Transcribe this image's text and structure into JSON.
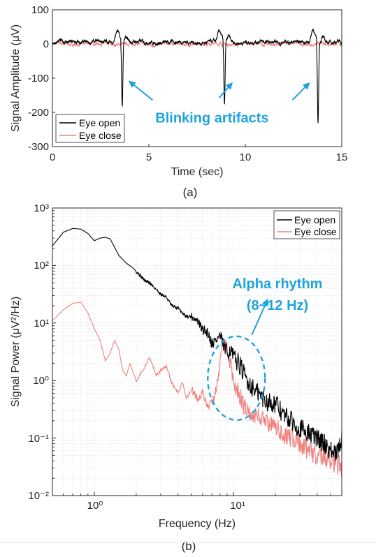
{
  "chart_data": [
    {
      "type": "line",
      "caption": "(a)",
      "xlabel": "Time (sec)",
      "ylabel": "Signal Amplitude (μV)",
      "xlim": [
        0,
        15
      ],
      "ylim": [
        -300,
        100
      ],
      "xticks": [
        0,
        5,
        10,
        15
      ],
      "yticks": [
        100,
        0,
        -100,
        -200,
        -300
      ],
      "legend_position": "bottom-left",
      "series": [
        {
          "name": "Eye open",
          "color": "#000000",
          "baseline": 5,
          "noise": 6,
          "spikes": [
            {
              "t": 3.55,
              "pre": 35,
              "min": -185
            },
            {
              "t": 8.85,
              "pre": 30,
              "min": -185
            },
            {
              "t": 13.7,
              "pre": 40,
              "min": -235
            }
          ]
        },
        {
          "name": "Eye close",
          "color": "#f08080",
          "baseline": 0,
          "noise": 5,
          "spikes": []
        }
      ],
      "annotation": {
        "text": "Blinking artifacts",
        "color": "#1fa3dc",
        "arrow_targets": [
          [
            4.0,
            -110
          ],
          [
            9.3,
            -115
          ],
          [
            13.3,
            -115
          ]
        ],
        "text_anchor": [
          9.0,
          -215
        ]
      }
    },
    {
      "type": "line",
      "caption": "(b)",
      "xlabel": "Frequency (Hz)",
      "ylabel": "Signal Power (μV²/Hz)",
      "xscale": "log",
      "yscale": "log",
      "xlim": [
        0.5,
        60
      ],
      "ylim": [
        0.01,
        1000
      ],
      "xtick_labels": [
        "10⁰",
        "10¹"
      ],
      "ytick_labels": [
        "10³",
        "10²",
        "10¹",
        "10⁰",
        "10⁻¹",
        "10⁻²"
      ],
      "grid": true,
      "legend_position": "top-right",
      "series": [
        {
          "name": "Eye open",
          "color": "#000000",
          "x": [
            0.5,
            0.6,
            0.7,
            0.8,
            0.9,
            1.0,
            1.1,
            1.2,
            1.3,
            1.5,
            1.7,
            1.9,
            2.1,
            2.3,
            2.5,
            2.8,
            3.0,
            3.3,
            3.6,
            4.0,
            4.3,
            4.6,
            5.0,
            5.5,
            6.0,
            6.5,
            7.0,
            7.5,
            8.0,
            8.5,
            9.0,
            9.5,
            10.0,
            11.0,
            12.0,
            13.0,
            14.0,
            15.0,
            17.0,
            20.0,
            23.0,
            26.0,
            30.0,
            35.0,
            40.0,
            45.0,
            50.0,
            55.0,
            60.0
          ],
          "y": [
            220,
            380,
            440,
            430,
            360,
            270,
            300,
            310,
            290,
            150,
            110,
            90,
            70,
            55,
            50,
            38,
            32,
            28,
            20,
            18,
            15,
            13,
            13,
            11,
            7.5,
            7,
            4.5,
            5,
            6,
            4,
            3,
            3.5,
            2.5,
            2,
            1.2,
            0.9,
            0.7,
            0.6,
            0.45,
            0.4,
            0.25,
            0.2,
            0.15,
            0.12,
            0.1,
            0.08,
            0.06,
            0.05,
            0.1
          ]
        },
        {
          "name": "Eye close",
          "color": "#f08080",
          "x": [
            0.5,
            0.6,
            0.7,
            0.8,
            0.9,
            1.0,
            1.1,
            1.2,
            1.3,
            1.4,
            1.5,
            1.6,
            1.7,
            1.8,
            2.0,
            2.2,
            2.5,
            2.8,
            3.0,
            3.3,
            3.6,
            4.0,
            4.3,
            4.6,
            5.0,
            5.5,
            6.0,
            6.5,
            7.0,
            7.5,
            8.0,
            8.5,
            9.0,
            9.5,
            10.0,
            10.5,
            11.0,
            12.0,
            13.0,
            15.0,
            17.0,
            20.0,
            23.0,
            26.0,
            30.0,
            35.0,
            40.0,
            45.0,
            50.0,
            55.0,
            60.0
          ],
          "y": [
            11,
            17,
            22,
            23,
            15,
            8,
            5,
            2.2,
            3,
            5,
            3.5,
            1.5,
            1.2,
            2,
            1,
            1.4,
            2.5,
            1.2,
            1.5,
            1.8,
            0.9,
            0.6,
            0.9,
            0.5,
            0.7,
            0.5,
            0.6,
            0.35,
            0.4,
            0.7,
            2,
            4.5,
            3.5,
            2,
            1,
            0.7,
            0.6,
            0.35,
            0.25,
            0.25,
            0.2,
            0.15,
            0.12,
            0.1,
            0.08,
            0.06,
            0.05,
            0.05,
            0.04,
            0.035,
            0.03
          ]
        }
      ],
      "annotation": {
        "text": "Alpha rhythm",
        "text2": "(8~12 Hz)",
        "color": "#1fa3dc",
        "ellipse_center": [
          10.5,
          1.1
        ],
        "arrow_target": [
          16.0,
          30.0
        ]
      }
    }
  ]
}
